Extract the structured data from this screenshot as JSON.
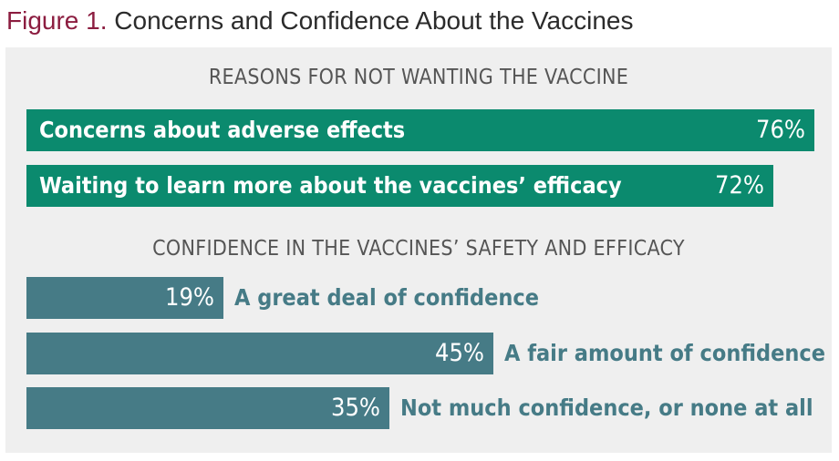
{
  "figure": {
    "number": "Figure 1.",
    "title": "Concerns and Confidence About the Vaccines",
    "number_color": "#8c1d40"
  },
  "chart_data": [
    {
      "type": "bar",
      "orientation": "horizontal",
      "title": "REASONS FOR NOT WANTING THE VACCINE",
      "categories": [
        "Concerns about adverse effects",
        "Waiting to learn more about the vaccines’ efficacy"
      ],
      "values": [
        76,
        72
      ],
      "value_labels": [
        "76%",
        "72%"
      ],
      "xlim": [
        0,
        76
      ],
      "color": "#0b8a6e",
      "label_position": "inside"
    },
    {
      "type": "bar",
      "orientation": "horizontal",
      "title": "CONFIDENCE IN THE VACCINES’ SAFETY AND EFFICACY",
      "categories": [
        "A great deal of confidence",
        "A fair amount of confidence",
        "Not much confidence, or none at all"
      ],
      "values": [
        19,
        45,
        35
      ],
      "value_labels": [
        "19%",
        "45%",
        "35%"
      ],
      "xlim": [
        0,
        76
      ],
      "color": "#467b86",
      "label_color": "#467b86",
      "label_position": "outside"
    }
  ]
}
